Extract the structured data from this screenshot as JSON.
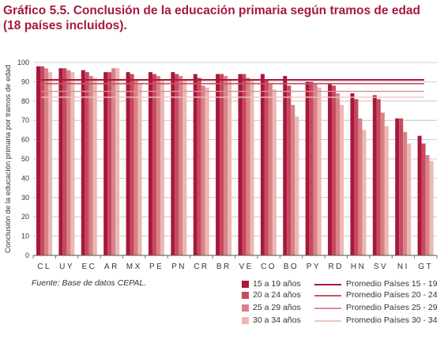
{
  "title_line1": "Gráfico 5.5. Conclusión de la educación primaria según tramos de edad",
  "title_line2": "(18 países incluidos).",
  "source": "Fuente: Base de datos CEPAL.",
  "colors": {
    "title": "#a8183b",
    "bar_15_19": "#a8183b",
    "bar_20_24": "#c74a5e",
    "bar_25_29": "#d98189",
    "bar_30_34": "#ecb8b2",
    "avg_15_19": "#a8183b",
    "avg_20_24": "#c95464",
    "avg_25_29": "#dd8f96",
    "avg_30_34": "#f0c4c0",
    "grid": "#bdbdbd",
    "axis": "#555555"
  },
  "chart_data": {
    "type": "bar",
    "ylabel": "Conclusión de la educación primaria por tramos de edad",
    "ylim": [
      0,
      100
    ],
    "yticks": [
      0,
      10,
      20,
      30,
      40,
      50,
      60,
      70,
      80,
      90,
      100
    ],
    "grid": true,
    "categories": [
      "CL",
      "UY",
      "EC",
      "AR",
      "MX",
      "PE",
      "PN",
      "CR",
      "BR",
      "VE",
      "CO",
      "BO",
      "PY",
      "RD",
      "HN",
      "SV",
      "NI",
      "GT"
    ],
    "series": [
      {
        "name": "15 a 19 años",
        "values": [
          98,
          97,
          96,
          95,
          95,
          95,
          95,
          94,
          94,
          94,
          94,
          93,
          90,
          89,
          84,
          83,
          71,
          62
        ]
      },
      {
        "name": "20 a 24 años",
        "values": [
          98,
          97,
          95,
          95,
          94,
          94,
          94,
          92,
          94,
          94,
          91,
          88,
          90,
          88,
          81,
          81,
          71,
          58
        ]
      },
      {
        "name": "25 a 29 años",
        "values": [
          97,
          96,
          93,
          97,
          91,
          93,
          93,
          88,
          93,
          92,
          89,
          78,
          89,
          84,
          71,
          74,
          64,
          52
        ]
      },
      {
        "name": "30 a 34 años",
        "values": [
          95,
          95,
          92,
          97,
          89,
          91,
          91,
          87,
          91,
          91,
          86,
          72,
          87,
          78,
          65,
          67,
          58,
          49
        ]
      }
    ],
    "reference_lines": [
      {
        "name": "Promedio Países 15 - 19",
        "value": 91
      },
      {
        "name": "Promedio Países 20 - 24",
        "value": 89
      },
      {
        "name": "Promedio Países 25 - 29",
        "value": 85
      },
      {
        "name": "Promedio Países 30 - 34",
        "value": 82
      }
    ],
    "legend_position": "bottom-right"
  }
}
